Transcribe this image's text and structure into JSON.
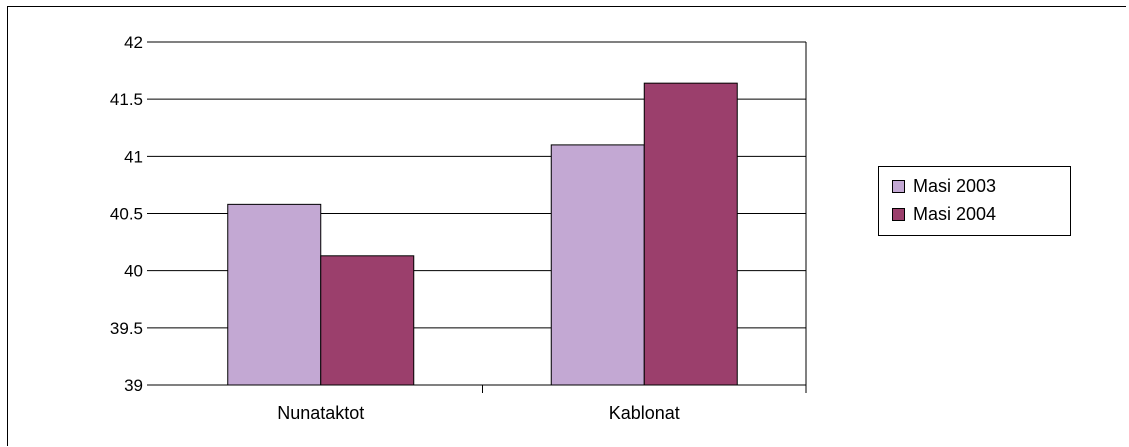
{
  "chart_data": {
    "type": "bar",
    "categories": [
      "Nunataktot",
      "Kablonat"
    ],
    "series": [
      {
        "name": "Masi 2003",
        "values": [
          40.58,
          41.1
        ],
        "color": "#c3a8d3"
      },
      {
        "name": "Masi 2004",
        "values": [
          40.13,
          41.64
        ],
        "color": "#9b3f6c"
      }
    ],
    "ylim": [
      39,
      42
    ],
    "yticks": [
      "39",
      "39.5",
      "40",
      "40.5",
      "41",
      "41.5",
      "42"
    ],
    "ytick_values": [
      39,
      39.5,
      40,
      40.5,
      41,
      41.5,
      42
    ],
    "grid": true,
    "legend_position": "right"
  }
}
